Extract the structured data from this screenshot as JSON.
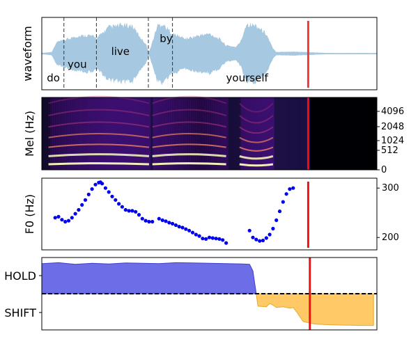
{
  "chart_data": [
    {
      "panel": "waveform",
      "type": "area",
      "ylabel": "waveform",
      "xlim": [
        0,
        1
      ],
      "ylim": [
        -1,
        1
      ],
      "fill_color": "#a6c8e0",
      "words": [
        {
          "text": "do",
          "x": 0.015,
          "y": -0.65
        },
        {
          "text": "you",
          "x": 0.077,
          "y": -0.28
        },
        {
          "text": "live",
          "x": 0.207,
          "y": 0.08
        },
        {
          "text": "by",
          "x": 0.352,
          "y": 0.43
        },
        {
          "text": "yourself",
          "x": 0.55,
          "y": -0.65
        }
      ],
      "boundaries": [
        0.066,
        0.163,
        0.318,
        0.39
      ],
      "envelope": [
        [
          0.0,
          0.02
        ],
        [
          0.03,
          0.05
        ],
        [
          0.045,
          0.35
        ],
        [
          0.066,
          0.4
        ],
        [
          0.1,
          0.52
        ],
        [
          0.14,
          0.56
        ],
        [
          0.165,
          0.48
        ],
        [
          0.2,
          0.8
        ],
        [
          0.24,
          0.86
        ],
        [
          0.27,
          0.85
        ],
        [
          0.29,
          0.55
        ],
        [
          0.31,
          0.3
        ],
        [
          0.32,
          0.05
        ],
        [
          0.33,
          0.35
        ],
        [
          0.345,
          0.85
        ],
        [
          0.36,
          0.9
        ],
        [
          0.38,
          0.7
        ],
        [
          0.39,
          0.6
        ],
        [
          0.43,
          0.45
        ],
        [
          0.47,
          0.55
        ],
        [
          0.5,
          0.6
        ],
        [
          0.53,
          0.45
        ],
        [
          0.55,
          0.25
        ],
        [
          0.58,
          0.2
        ],
        [
          0.595,
          0.4
        ],
        [
          0.61,
          0.9
        ],
        [
          0.64,
          0.85
        ],
        [
          0.67,
          0.6
        ],
        [
          0.69,
          0.15
        ],
        [
          0.7,
          0.05
        ],
        [
          0.75,
          0.06
        ],
        [
          0.8,
          0.04
        ],
        [
          0.85,
          0.02
        ],
        [
          1.0,
          0.02
        ]
      ],
      "marker_x": 0.795,
      "marker_color": "#ee3a3a"
    },
    {
      "panel": "mel",
      "type": "heatmap",
      "ylabel": "Mel (Hz)",
      "yticks": [
        "0",
        "512",
        "1024",
        "2048",
        "4096"
      ],
      "xlim": [
        0,
        1
      ],
      "colormap": "magma",
      "silent_from": 0.8,
      "harmonic_segments": [
        [
          0.02,
          0.32
        ],
        [
          0.33,
          0.55
        ],
        [
          0.59,
          0.69
        ]
      ],
      "marker_x": 0.795,
      "marker_color": "#ee1111"
    },
    {
      "panel": "f0",
      "type": "scatter",
      "ylabel": "F0 (Hz)",
      "yticks": [
        200,
        300
      ],
      "ylim": [
        175,
        320
      ],
      "xlim": [
        0,
        1
      ],
      "color": "#0000ee",
      "points": [
        [
          0.04,
          240
        ],
        [
          0.05,
          242
        ],
        [
          0.06,
          236
        ],
        [
          0.07,
          232
        ],
        [
          0.08,
          234
        ],
        [
          0.09,
          240
        ],
        [
          0.1,
          248
        ],
        [
          0.11,
          256
        ],
        [
          0.12,
          266
        ],
        [
          0.13,
          276
        ],
        [
          0.14,
          287
        ],
        [
          0.15,
          298
        ],
        [
          0.16,
          307
        ],
        [
          0.17,
          311
        ],
        [
          0.175,
          312
        ],
        [
          0.18,
          309
        ],
        [
          0.19,
          300
        ],
        [
          0.2,
          292
        ],
        [
          0.21,
          283
        ],
        [
          0.22,
          276
        ],
        [
          0.23,
          268
        ],
        [
          0.24,
          262
        ],
        [
          0.25,
          256
        ],
        [
          0.26,
          254
        ],
        [
          0.27,
          254
        ],
        [
          0.28,
          252
        ],
        [
          0.29,
          246
        ],
        [
          0.3,
          238
        ],
        [
          0.31,
          234
        ],
        [
          0.32,
          232
        ],
        [
          0.33,
          232
        ],
        [
          0.35,
          238
        ],
        [
          0.36,
          235
        ],
        [
          0.37,
          233
        ],
        [
          0.38,
          230
        ],
        [
          0.39,
          228
        ],
        [
          0.4,
          225
        ],
        [
          0.41,
          222
        ],
        [
          0.42,
          220
        ],
        [
          0.43,
          217
        ],
        [
          0.44,
          214
        ],
        [
          0.45,
          210
        ],
        [
          0.46,
          206
        ],
        [
          0.47,
          203
        ],
        [
          0.48,
          198
        ],
        [
          0.49,
          197
        ],
        [
          0.5,
          200
        ],
        [
          0.51,
          199
        ],
        [
          0.52,
          198
        ],
        [
          0.53,
          197
        ],
        [
          0.54,
          195
        ],
        [
          0.55,
          189
        ],
        [
          0.62,
          214
        ],
        [
          0.63,
          200
        ],
        [
          0.64,
          196
        ],
        [
          0.65,
          193
        ],
        [
          0.66,
          194
        ],
        [
          0.67,
          199
        ],
        [
          0.68,
          206
        ],
        [
          0.69,
          218
        ],
        [
          0.7,
          235
        ],
        [
          0.71,
          253
        ],
        [
          0.72,
          272
        ],
        [
          0.73,
          288
        ],
        [
          0.74,
          298
        ],
        [
          0.75,
          300
        ]
      ],
      "marker_x": 0.795,
      "marker_color": "#ee1111"
    },
    {
      "panel": "turn",
      "type": "area",
      "yticks": [
        "HOLD",
        "SHIFT"
      ],
      "xlim": [
        0,
        1
      ],
      "ylim": [
        -1,
        1
      ],
      "hold_color": "#6d6de8",
      "hold_edge": "#3e3ed0",
      "shift_color": "#ffc966",
      "shift_edge": "#e8a630",
      "threshold": 0,
      "hold": [
        [
          0.0,
          0.92
        ],
        [
          0.05,
          0.95
        ],
        [
          0.1,
          0.9
        ],
        [
          0.15,
          0.93
        ],
        [
          0.2,
          0.91
        ],
        [
          0.25,
          0.94
        ],
        [
          0.3,
          0.93
        ],
        [
          0.35,
          0.92
        ],
        [
          0.4,
          0.95
        ],
        [
          0.45,
          0.94
        ],
        [
          0.5,
          0.93
        ],
        [
          0.55,
          0.92
        ],
        [
          0.6,
          0.91
        ],
        [
          0.62,
          0.9
        ],
        [
          0.63,
          0.7
        ],
        [
          0.64,
          0.0
        ]
      ],
      "shift": [
        [
          0.64,
          0.0
        ],
        [
          0.645,
          -0.38
        ],
        [
          0.67,
          -0.4
        ],
        [
          0.68,
          -0.3
        ],
        [
          0.69,
          -0.35
        ],
        [
          0.7,
          -0.42
        ],
        [
          0.72,
          -0.4
        ],
        [
          0.74,
          -0.44
        ],
        [
          0.75,
          -0.42
        ],
        [
          0.76,
          -0.55
        ],
        [
          0.78,
          -0.85
        ],
        [
          0.8,
          -0.9
        ],
        [
          0.82,
          -0.93
        ],
        [
          0.86,
          -0.95
        ],
        [
          0.9,
          -0.96
        ],
        [
          0.95,
          -0.97
        ],
        [
          0.99,
          -0.97
        ]
      ],
      "marker_x": 0.8,
      "marker_color": "#ee1111"
    }
  ]
}
